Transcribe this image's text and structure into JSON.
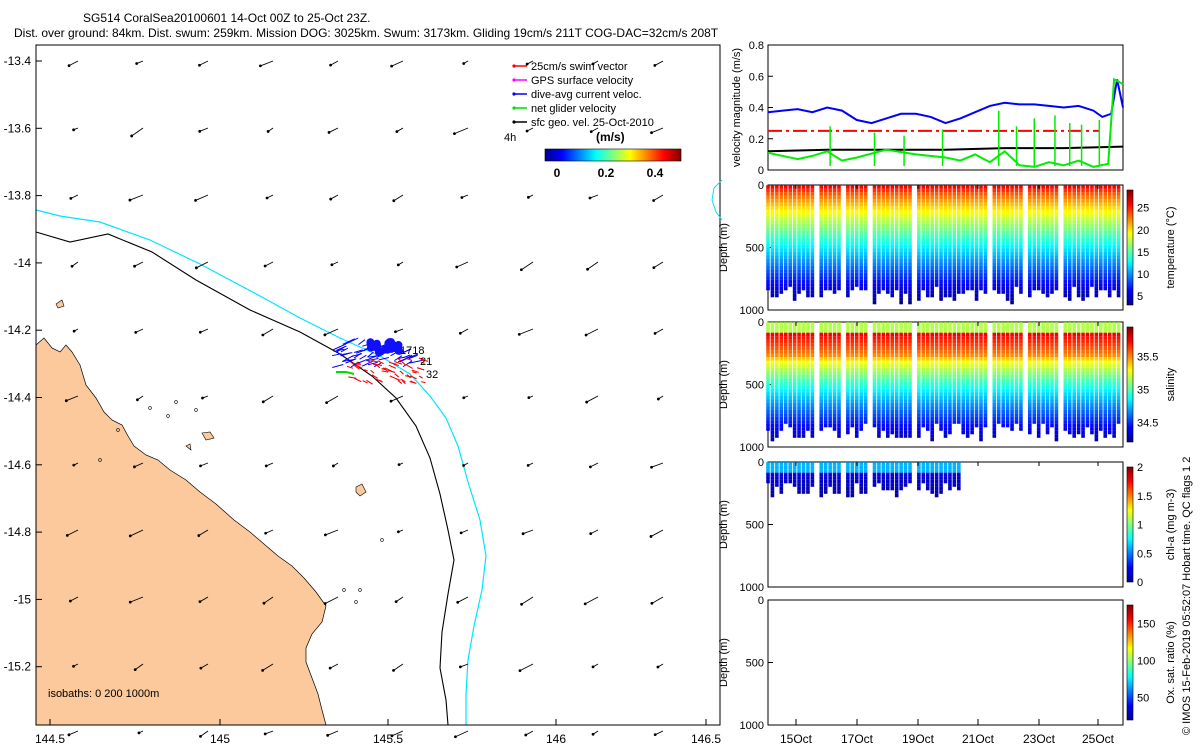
{
  "header": {
    "line1": "SG514 CoralSea20100601 14-Oct 00Z to 25-Oct 23Z.",
    "line2": "Dist. over ground: 84km. Dist. swum: 259km. Mission DOG: 3025km. Swum: 3173km. Gliding 19cm/s 211T COG-DAC=32cm/s 208T"
  },
  "map": {
    "lon_ticks": [
      "144.5",
      "145",
      "145.5",
      "146",
      "146.5"
    ],
    "lat_ticks": [
      "-13.4",
      "-13.6",
      "-13.8",
      "-14",
      "-14.2",
      "-14.4",
      "-14.6",
      "-14.8",
      "-15",
      "-15.2"
    ],
    "isobaths": "isobaths: 0   200  1000m",
    "legend": [
      {
        "label": "25cm/s swim vector",
        "color": "#ff0000"
      },
      {
        "label": "GPS surface velocity",
        "color": "#ff00ff"
      },
      {
        "label": "dive-avg current veloc.",
        "color": "#0000ff"
      },
      {
        "label": "net glider velocity",
        "color": "#00dd00"
      },
      {
        "label": "sfc geo. vel. 25-Oct-2010",
        "color": "#000000"
      }
    ],
    "offset_label": "4h",
    "colorbar": {
      "unit": "(m/s)",
      "ticks": [
        "0",
        "0.2",
        "0.4"
      ]
    },
    "track_labels": [
      "1718",
      "21",
      "32"
    ],
    "land_color": "#fbc99b",
    "isobath_colors": {
      "200m": "#00e5ff",
      "1000m": "#000000"
    }
  },
  "chart_data": [
    {
      "type": "line",
      "ylabel": "velocity magnitude (m/s)",
      "ylim": [
        0,
        0.8
      ],
      "yticks": [
        "0",
        "0.2",
        "0.4",
        "0.6",
        "0.8"
      ],
      "series": [
        {
          "color": "#0000ff",
          "x": [
            0,
            0.5,
            1,
            1.5,
            2,
            2.5,
            3,
            3.5,
            4,
            4.5,
            5,
            5.5,
            6,
            6.5,
            7,
            7.5,
            8,
            8.5,
            9,
            9.5,
            10,
            10.5,
            11,
            11.3,
            11.6,
            11.8,
            12
          ],
          "y": [
            0.37,
            0.38,
            0.39,
            0.37,
            0.4,
            0.38,
            0.32,
            0.3,
            0.33,
            0.36,
            0.36,
            0.34,
            0.3,
            0.33,
            0.37,
            0.41,
            0.43,
            0.42,
            0.42,
            0.41,
            0.4,
            0.41,
            0.38,
            0.34,
            0.36,
            0.58,
            0.4
          ]
        },
        {
          "color": "#ff0000",
          "dash": true,
          "x": [
            0,
            11.2
          ],
          "y": [
            0.25,
            0.25
          ]
        },
        {
          "color": "#000000",
          "x": [
            0,
            2,
            4,
            6,
            8,
            10,
            12
          ],
          "y": [
            0.12,
            0.13,
            0.13,
            0.13,
            0.14,
            0.14,
            0.15
          ]
        },
        {
          "color": "#00ee00",
          "x": [
            0,
            1,
            1.5,
            2,
            2.5,
            3,
            4,
            5,
            6,
            6.5,
            7,
            7.5,
            8,
            8.5,
            9,
            9.5,
            10,
            10.5,
            11,
            11.5,
            11.7,
            12
          ],
          "y": [
            0.11,
            0.07,
            0.09,
            0.12,
            0.06,
            0.08,
            0.13,
            0.1,
            0.08,
            0.06,
            0.1,
            0.05,
            0.12,
            0.03,
            0.02,
            0.05,
            0.03,
            0.06,
            0.02,
            0.04,
            0.58,
            0.55
          ]
        }
      ]
    },
    {
      "type": "scatter",
      "ylabel": "Depth (m)",
      "ylim": [
        0,
        1000
      ],
      "yticks": [
        "0",
        "500",
        "1000"
      ],
      "colorbar": {
        "label": "temperature (°C)",
        "ticks": [
          "5",
          "10",
          "15",
          "20",
          "25"
        ]
      }
    },
    {
      "type": "scatter",
      "ylabel": "Depth (m)",
      "ylim": [
        0,
        1000
      ],
      "yticks": [
        "0",
        "500",
        "1000"
      ],
      "colorbar": {
        "label": "salinity",
        "ticks": [
          "34.5",
          "35",
          "35.5"
        ]
      }
    },
    {
      "type": "scatter",
      "ylabel": "Depth (m)",
      "ylim": [
        0,
        1000
      ],
      "yticks": [
        "0",
        "500",
        "1000"
      ],
      "colorbar": {
        "label": "chl-a (mg m-3)",
        "ticks": [
          "0",
          "0.5",
          "1",
          "1.5",
          "2"
        ]
      }
    },
    {
      "type": "scatter",
      "ylabel": "Depth (m)",
      "ylim": [
        0,
        1000
      ],
      "yticks": [
        "0",
        "500",
        "1000"
      ],
      "colorbar": {
        "label": "Ox. sat. ratio (%)",
        "ticks": [
          "50",
          "100",
          "150"
        ]
      }
    }
  ],
  "xaxis": {
    "ticks": [
      "15Oct",
      "17Oct",
      "19Oct",
      "21Oct",
      "23Oct",
      "25Oct"
    ]
  },
  "footer": {
    "credit": "© IMOS 15-Feb-2019 05:52:07 Hobart time. QC flags 1  2"
  }
}
